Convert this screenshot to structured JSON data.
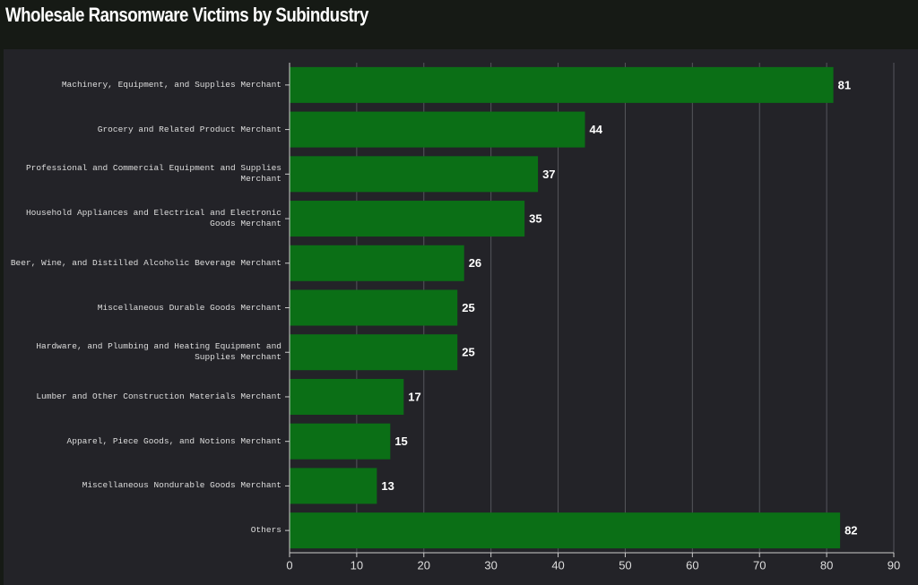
{
  "chart_data": {
    "type": "bar",
    "orientation": "horizontal",
    "title": "Wholesale Ransomware Victims by Subindustry",
    "categories": [
      "Machinery, Equipment, and Supplies Merchant",
      "Grocery and Related Product Merchant",
      "Professional and Commercial Equipment and Supplies Merchant",
      "Household Appliances and Electrical and Electronic Goods Merchant",
      "Beer, Wine, and Distilled Alcoholic Beverage Merchant",
      "Miscellaneous Durable Goods Merchant",
      "Hardware, and Plumbing and Heating Equipment and Supplies Merchant",
      "Lumber and Other Construction Materials Merchant",
      "Apparel, Piece Goods, and Notions Merchant",
      "Miscellaneous Nondurable Goods Merchant",
      "Others"
    ],
    "values": [
      81,
      44,
      37,
      35,
      26,
      25,
      25,
      17,
      15,
      13,
      82
    ],
    "color": "#0b6f16",
    "xlim": [
      0,
      90
    ],
    "xticks": [
      0,
      10,
      20,
      30,
      40,
      50,
      60,
      70,
      80,
      90
    ],
    "grid": true
  }
}
